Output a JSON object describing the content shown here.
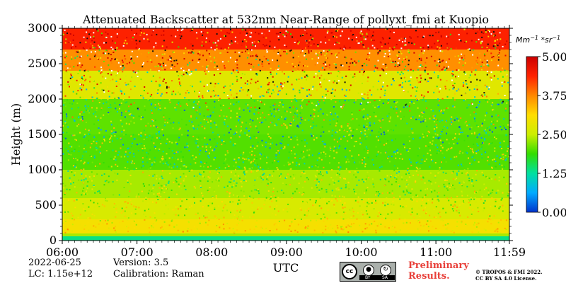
{
  "chart_data": {
    "type": "heatmap",
    "title": "Attenuated Backscatter at 532nm Near-Range of pollyxt_fmi at Kuopio",
    "xlabel": "UTC",
    "ylabel": "Height (m)",
    "x_ticks": [
      "06:00",
      "07:00",
      "08:00",
      "09:00",
      "10:00",
      "11:00",
      "11:59"
    ],
    "xlim": [
      "06:00",
      "11:59"
    ],
    "y_ticks": [
      0,
      500,
      1000,
      1500,
      2000,
      2500,
      3000
    ],
    "ylim": [
      0,
      3000
    ],
    "colorbar": {
      "label": "Mm^-1 * sr^-1",
      "ticks": [
        "0.00",
        "1.25",
        "2.50",
        "3.75",
        "5.00"
      ],
      "range": [
        0,
        5
      ],
      "colormap": [
        "#0033cc",
        "#00aaff",
        "#00e0a0",
        "#33dd00",
        "#ccee00",
        "#ffdd00",
        "#ff8800",
        "#ff2200",
        "#cc0000"
      ]
    },
    "profile": [
      {
        "height": 0,
        "backscatter": 1.2
      },
      {
        "height": 60,
        "backscatter": 1.5
      },
      {
        "height": 100,
        "backscatter": 3.2
      },
      {
        "height": 300,
        "backscatter": 2.8
      },
      {
        "height": 600,
        "backscatter": 2.5
      },
      {
        "height": 1000,
        "backscatter": 2.2
      },
      {
        "height": 1500,
        "backscatter": 1.8
      },
      {
        "height": 2000,
        "backscatter": 2.3
      },
      {
        "height": 2400,
        "backscatter": 3.2
      },
      {
        "height": 2700,
        "backscatter": 4.2
      },
      {
        "height": 3000,
        "backscatter": 4.6
      }
    ]
  },
  "info": {
    "date": "2022-06-25",
    "version": "Version: 3.5",
    "lc": "LC: 1.15e+12",
    "calibration": "Calibration: Raman"
  },
  "footer": {
    "preliminary_line1": "Preliminary",
    "preliminary_line2": "Results.",
    "copyright_line1": "© TROPOS & FMI 2022.",
    "copyright_line2": "CC BY SA 4.0 License.",
    "license_badge": {
      "cc": "cc",
      "by": "BY",
      "sa": "SA",
      "icons": [
        "person-icon",
        "share-alike-icon"
      ]
    }
  }
}
